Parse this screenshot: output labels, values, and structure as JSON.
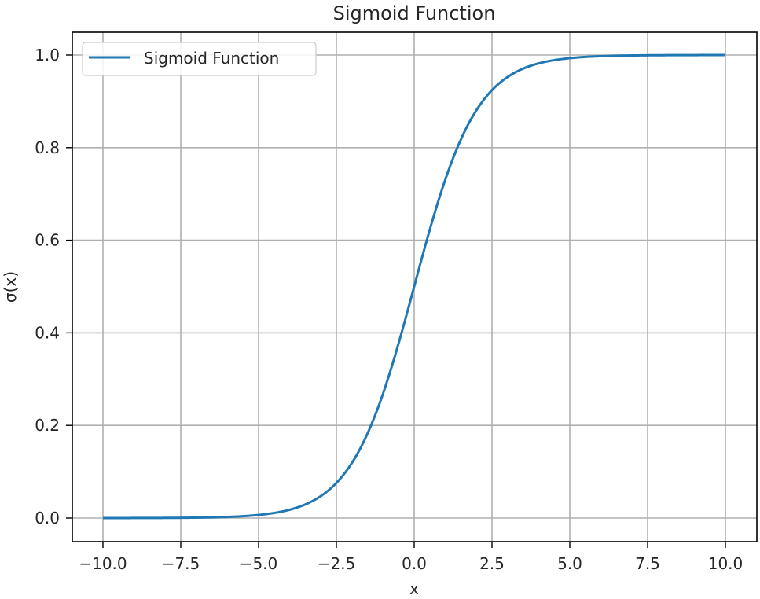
{
  "chart_data": {
    "type": "line",
    "title": "Sigmoid Function",
    "xlabel": "x",
    "ylabel": "σ(x)",
    "xlim": [
      -11,
      11
    ],
    "ylim": [
      -0.05,
      1.05
    ],
    "grid": true,
    "legend_position": "upper left",
    "x_ticks": [
      "−10.0",
      "−7.5",
      "−5.0",
      "−2.5",
      "0.0",
      "2.5",
      "5.0",
      "7.5",
      "10.0"
    ],
    "y_ticks": [
      "0.0",
      "0.2",
      "0.4",
      "0.6",
      "0.8",
      "1.0"
    ],
    "series": [
      {
        "name": "Sigmoid Function",
        "color": "#1f77b4",
        "function": "1/(1+exp(-x))",
        "x": [
          -10,
          -7.5,
          -5,
          -2.5,
          -1,
          0,
          1,
          2.5,
          5,
          7.5,
          10
        ],
        "values": [
          4.54e-05,
          0.000553,
          0.00669,
          0.0759,
          0.269,
          0.5,
          0.731,
          0.924,
          0.9933,
          0.99945,
          0.99995
        ]
      }
    ]
  }
}
